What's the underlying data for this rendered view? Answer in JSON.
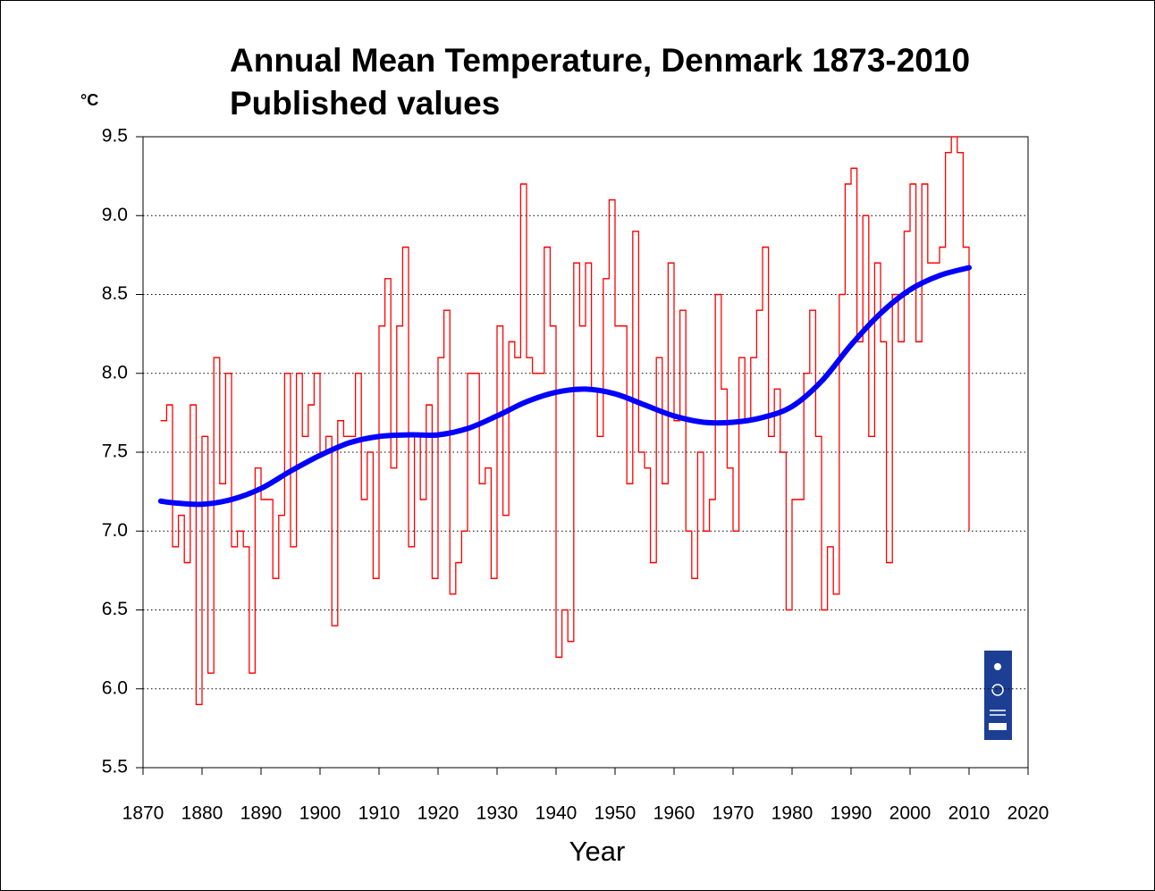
{
  "chart_data": {
    "type": "line",
    "title": "Annual Mean Temperature, Denmark 1873-2010",
    "subtitle": "Published values",
    "y_unit": "°C",
    "x_label": "Year",
    "x": [
      1873,
      1874,
      1875,
      1876,
      1877,
      1878,
      1879,
      1880,
      1881,
      1882,
      1883,
      1884,
      1885,
      1886,
      1887,
      1888,
      1889,
      1890,
      1891,
      1892,
      1893,
      1894,
      1895,
      1896,
      1897,
      1898,
      1899,
      1900,
      1901,
      1902,
      1903,
      1904,
      1905,
      1906,
      1907,
      1908,
      1909,
      1910,
      1911,
      1912,
      1913,
      1914,
      1915,
      1916,
      1917,
      1918,
      1919,
      1920,
      1921,
      1922,
      1923,
      1924,
      1925,
      1926,
      1927,
      1928,
      1929,
      1930,
      1931,
      1932,
      1933,
      1934,
      1935,
      1936,
      1937,
      1938,
      1939,
      1940,
      1941,
      1942,
      1943,
      1944,
      1945,
      1946,
      1947,
      1948,
      1949,
      1950,
      1951,
      1952,
      1953,
      1954,
      1955,
      1956,
      1957,
      1958,
      1959,
      1960,
      1961,
      1962,
      1963,
      1964,
      1965,
      1966,
      1967,
      1968,
      1969,
      1970,
      1971,
      1972,
      1973,
      1974,
      1975,
      1976,
      1977,
      1978,
      1979,
      1980,
      1981,
      1982,
      1983,
      1984,
      1985,
      1986,
      1987,
      1988,
      1989,
      1990,
      1991,
      1992,
      1993,
      1994,
      1995,
      1996,
      1997,
      1998,
      1999,
      2000,
      2001,
      2002,
      2003,
      2004,
      2005,
      2006,
      2007,
      2008,
      2009,
      2010
    ],
    "series": [
      {
        "style": "step",
        "color": "#ff0000",
        "values": [
          7.7,
          7.8,
          6.9,
          7.1,
          6.8,
          7.8,
          5.9,
          7.6,
          6.1,
          8.1,
          7.3,
          8.0,
          6.9,
          7.0,
          6.9,
          6.1,
          7.4,
          7.2,
          7.2,
          6.7,
          7.1,
          8.0,
          6.9,
          8.0,
          7.6,
          7.8,
          8.0,
          7.5,
          7.6,
          6.4,
          7.7,
          7.6,
          7.6,
          8.0,
          7.2,
          7.5,
          6.7,
          8.3,
          8.6,
          7.4,
          8.3,
          8.8,
          6.9,
          7.6,
          7.2,
          7.8,
          6.7,
          8.1,
          8.4,
          6.6,
          6.8,
          7.0,
          8.0,
          8.0,
          7.3,
          7.4,
          6.7,
          8.3,
          7.1,
          8.2,
          8.1,
          9.2,
          8.1,
          8.0,
          8.0,
          8.8,
          8.3,
          6.2,
          6.5,
          6.3,
          8.7,
          8.3,
          8.7,
          7.9,
          7.6,
          8.6,
          9.1,
          8.3,
          8.3,
          7.3,
          8.9,
          7.5,
          7.4,
          6.8,
          8.1,
          7.3,
          8.7,
          7.7,
          8.4,
          7.0,
          6.7,
          7.5,
          7.0,
          7.2,
          8.5,
          7.9,
          7.4,
          7.0,
          8.1,
          7.7,
          8.1,
          8.4,
          8.8,
          7.6,
          7.9,
          7.5,
          6.5,
          7.2,
          7.2,
          8.0,
          8.4,
          7.6,
          6.5,
          6.9,
          6.6,
          8.5,
          9.2,
          9.3,
          8.2,
          9.0,
          7.6,
          8.7,
          8.2,
          6.8,
          8.5,
          8.2,
          8.9,
          9.2,
          8.2,
          9.2,
          8.7,
          8.7,
          8.8,
          9.4,
          9.5,
          9.4,
          8.8,
          7.0
        ]
      },
      {
        "style": "smooth",
        "color": "#0000ff",
        "x": [
          1873,
          1875,
          1880,
          1885,
          1890,
          1895,
          1900,
          1905,
          1910,
          1915,
          1920,
          1925,
          1930,
          1935,
          1940,
          1945,
          1950,
          1955,
          1960,
          1965,
          1970,
          1975,
          1980,
          1985,
          1990,
          1995,
          2000,
          2005,
          2010
        ],
        "values": [
          7.19,
          7.18,
          7.17,
          7.2,
          7.27,
          7.38,
          7.48,
          7.56,
          7.6,
          7.61,
          7.61,
          7.65,
          7.73,
          7.82,
          7.88,
          7.9,
          7.87,
          7.8,
          7.73,
          7.69,
          7.69,
          7.72,
          7.79,
          7.95,
          8.18,
          8.38,
          8.53,
          8.62,
          8.67
        ]
      }
    ],
    "xlim": [
      1870,
      2020
    ],
    "xticks": [
      1870,
      1880,
      1890,
      1900,
      1910,
      1920,
      1930,
      1940,
      1950,
      1960,
      1970,
      1980,
      1990,
      2000,
      2010,
      2020
    ],
    "ylim": [
      5.5,
      9.5
    ],
    "yticks": [
      5.5,
      {
        "value": 6,
        "label": "6.0"
      },
      6.5,
      {
        "value": 7,
        "label": "7.0"
      },
      7.5,
      {
        "value": 8,
        "label": "8.0"
      },
      8.5,
      {
        "value": 9,
        "label": "9.0"
      },
      9.5
    ],
    "grid": "dotted-horizontal"
  }
}
